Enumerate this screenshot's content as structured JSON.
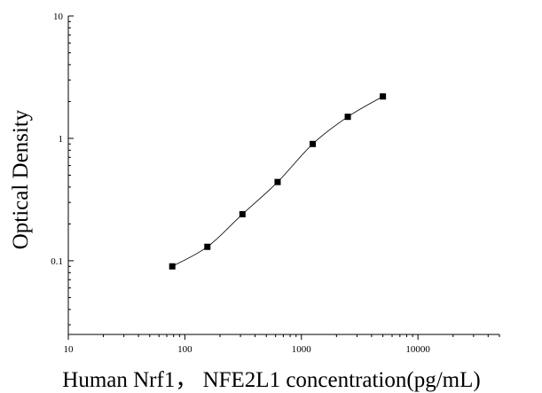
{
  "chart_data": {
    "type": "scatter",
    "xlabel": "Human Nrf1， NFE2L1 concentration(pg/mL)",
    "ylabel": "Optical Density",
    "xscale": "log",
    "yscale": "log",
    "xlim": [
      10,
      50000
    ],
    "ylim": [
      0.025,
      10
    ],
    "x_ticks": [
      {
        "value": 10,
        "label": "10"
      },
      {
        "value": 100,
        "label": "100"
      },
      {
        "value": 1000,
        "label": "1000"
      },
      {
        "value": 10000,
        "label": "10000"
      }
    ],
    "y_ticks": [
      {
        "value": 0.1,
        "label": "0.1"
      },
      {
        "value": 1,
        "label": "1"
      },
      {
        "value": 10,
        "label": "10"
      }
    ],
    "grid": false,
    "marker": "square",
    "fit_line": true,
    "series": [
      {
        "x": [
          78,
          156,
          312,
          625,
          1250,
          2500,
          5000
        ],
        "y": [
          0.09,
          0.13,
          0.24,
          0.44,
          0.9,
          1.5,
          2.2
        ]
      }
    ]
  }
}
